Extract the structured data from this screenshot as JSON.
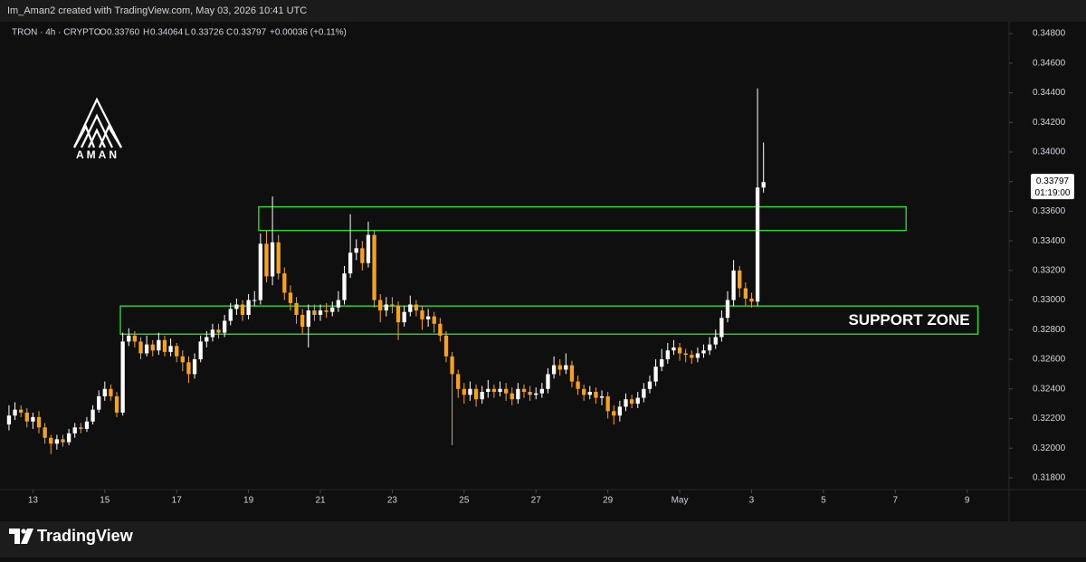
{
  "header": "Im_Aman2 created with TradingView.com, May 03, 2026 10:41 UTC",
  "legend": {
    "symbol": "TRON · 4h · CRYPTO",
    "o": "O",
    "open": "0.33760",
    "h": "H",
    "high": "0.34064",
    "l": "L",
    "low": "0.33726",
    "c": "C",
    "close": "0.33797",
    "change": "+0.00036 (+0.11%)"
  },
  "logo": "AMAN",
  "footer": "TradingView",
  "chart_data": {
    "type": "candlestick",
    "up_color": "#ffffff",
    "down_color": "#f7a21b",
    "zone_color": "#2ee62e",
    "ylim": [
      0.3172,
      0.3488
    ],
    "yticks": [
      {
        "value": 0.318,
        "label": "0.31800"
      },
      {
        "value": 0.32,
        "label": "0.32000"
      },
      {
        "value": 0.322,
        "label": "0.32200"
      },
      {
        "value": 0.324,
        "label": "0.32400"
      },
      {
        "value": 0.326,
        "label": "0.32600"
      },
      {
        "value": 0.328,
        "label": "0.32800"
      },
      {
        "value": 0.33,
        "label": "0.33000"
      },
      {
        "value": 0.332,
        "label": "0.33200"
      },
      {
        "value": 0.334,
        "label": "0.33400"
      },
      {
        "value": 0.336,
        "label": "0.33600"
      },
      {
        "value": 0.338,
        "label": "0.33800"
      },
      {
        "value": 0.34,
        "label": "0.34000"
      },
      {
        "value": 0.342,
        "label": "0.34200"
      },
      {
        "value": 0.344,
        "label": "0.34400"
      },
      {
        "value": 0.346,
        "label": "0.34600"
      },
      {
        "value": 0.348,
        "label": "0.34800"
      }
    ],
    "xlim": [
      -1.5,
      167
    ],
    "xticks": [
      {
        "value": 4,
        "label": "13"
      },
      {
        "value": 16,
        "label": "15"
      },
      {
        "value": 28,
        "label": "17"
      },
      {
        "value": 40,
        "label": "19"
      },
      {
        "value": 52,
        "label": "21"
      },
      {
        "value": 64,
        "label": "23"
      },
      {
        "value": 76,
        "label": "25"
      },
      {
        "value": 88,
        "label": "27"
      },
      {
        "value": 100,
        "label": "29"
      },
      {
        "value": 112,
        "label": "May"
      },
      {
        "value": 124,
        "label": "3"
      },
      {
        "value": 136,
        "label": "5"
      },
      {
        "value": 148,
        "label": "7"
      },
      {
        "value": 160,
        "label": "9"
      }
    ],
    "last_price": {
      "value": 0.33797,
      "label": "0.33797",
      "countdown": "01:19:00"
    },
    "zones": [
      {
        "x": [
          41.7,
          149.8
        ],
        "y": [
          0.3347,
          0.3363
        ]
      },
      {
        "x": [
          18.6,
          161.8
        ],
        "y": [
          0.3277,
          0.3296
        ],
        "label": "SUPPORT ZONE"
      }
    ],
    "ohlc": [
      [
        0.3216,
        0.3229,
        0.3212,
        0.3222
      ],
      [
        0.3222,
        0.3231,
        0.3219,
        0.3226
      ],
      [
        0.3226,
        0.3229,
        0.3221,
        0.3224
      ],
      [
        0.3224,
        0.3227,
        0.3214,
        0.3218
      ],
      [
        0.3218,
        0.3224,
        0.3213,
        0.3221
      ],
      [
        0.3221,
        0.3225,
        0.321,
        0.3214
      ],
      [
        0.3214,
        0.3217,
        0.3203,
        0.3207
      ],
      [
        0.3207,
        0.3209,
        0.3196,
        0.3203
      ],
      [
        0.3203,
        0.3209,
        0.3199,
        0.3206
      ],
      [
        0.3206,
        0.3209,
        0.3201,
        0.3204
      ],
      [
        0.3204,
        0.3213,
        0.3202,
        0.321
      ],
      [
        0.321,
        0.3217,
        0.3207,
        0.3214
      ],
      [
        0.3214,
        0.3217,
        0.321,
        0.3213
      ],
      [
        0.3213,
        0.3221,
        0.3211,
        0.3218
      ],
      [
        0.3218,
        0.3229,
        0.3216,
        0.3226
      ],
      [
        0.3226,
        0.3239,
        0.3224,
        0.3235
      ],
      [
        0.3235,
        0.3245,
        0.3232,
        0.324
      ],
      [
        0.324,
        0.3243,
        0.3232,
        0.3235
      ],
      [
        0.3235,
        0.3238,
        0.3221,
        0.3224
      ],
      [
        0.3224,
        0.3278,
        0.3222,
        0.3272
      ],
      [
        0.3272,
        0.3281,
        0.3269,
        0.3276
      ],
      [
        0.3276,
        0.3279,
        0.3268,
        0.3272
      ],
      [
        0.3272,
        0.3275,
        0.326,
        0.3264
      ],
      [
        0.3264,
        0.3276,
        0.3262,
        0.327
      ],
      [
        0.327,
        0.3273,
        0.3262,
        0.3266
      ],
      [
        0.3266,
        0.3278,
        0.3263,
        0.3273
      ],
      [
        0.3273,
        0.3276,
        0.3262,
        0.3265
      ],
      [
        0.3265,
        0.3274,
        0.3262,
        0.3269
      ],
      [
        0.3269,
        0.3271,
        0.3258,
        0.3262
      ],
      [
        0.3262,
        0.3266,
        0.3252,
        0.3258
      ],
      [
        0.3258,
        0.3262,
        0.3244,
        0.325
      ],
      [
        0.325,
        0.3264,
        0.3247,
        0.326
      ],
      [
        0.326,
        0.3276,
        0.3258,
        0.3272
      ],
      [
        0.3272,
        0.3279,
        0.3268,
        0.3275
      ],
      [
        0.3275,
        0.3284,
        0.3272,
        0.328
      ],
      [
        0.328,
        0.3284,
        0.3274,
        0.3278
      ],
      [
        0.3278,
        0.329,
        0.3275,
        0.3286
      ],
      [
        0.3286,
        0.3298,
        0.3283,
        0.3294
      ],
      [
        0.3294,
        0.3301,
        0.329,
        0.3297
      ],
      [
        0.3297,
        0.33,
        0.3286,
        0.329
      ],
      [
        0.329,
        0.3304,
        0.3287,
        0.33
      ],
      [
        0.33,
        0.3306,
        0.3296,
        0.33
      ],
      [
        0.33,
        0.3345,
        0.3297,
        0.3338
      ],
      [
        0.3338,
        0.3347,
        0.3312,
        0.3316
      ],
      [
        0.3316,
        0.337,
        0.331,
        0.3339
      ],
      [
        0.3339,
        0.3344,
        0.3314,
        0.3318
      ],
      [
        0.3318,
        0.3322,
        0.33,
        0.3305
      ],
      [
        0.3305,
        0.331,
        0.3293,
        0.3298
      ],
      [
        0.3298,
        0.3302,
        0.3284,
        0.329
      ],
      [
        0.329,
        0.3294,
        0.3277,
        0.3282
      ],
      [
        0.3282,
        0.3297,
        0.3268,
        0.3293
      ],
      [
        0.3293,
        0.3297,
        0.3286,
        0.329
      ],
      [
        0.329,
        0.3297,
        0.3286,
        0.3293
      ],
      [
        0.3293,
        0.3298,
        0.3288,
        0.3292
      ],
      [
        0.3292,
        0.3299,
        0.3289,
        0.3295
      ],
      [
        0.3295,
        0.3306,
        0.3292,
        0.33
      ],
      [
        0.33,
        0.3323,
        0.3297,
        0.3318
      ],
      [
        0.3318,
        0.3358,
        0.3315,
        0.3332
      ],
      [
        0.3332,
        0.3341,
        0.3327,
        0.3335
      ],
      [
        0.3335,
        0.334,
        0.332,
        0.3325
      ],
      [
        0.3325,
        0.3353,
        0.3322,
        0.3344
      ],
      [
        0.3344,
        0.3347,
        0.3295,
        0.33
      ],
      [
        0.33,
        0.3304,
        0.3285,
        0.3293
      ],
      [
        0.3293,
        0.3302,
        0.3289,
        0.3297
      ],
      [
        0.3297,
        0.3302,
        0.3291,
        0.3296
      ],
      [
        0.3296,
        0.3299,
        0.3273,
        0.3285
      ],
      [
        0.3285,
        0.3296,
        0.3282,
        0.3292
      ],
      [
        0.3292,
        0.3303,
        0.3289,
        0.3297
      ],
      [
        0.3297,
        0.33,
        0.3289,
        0.3293
      ],
      [
        0.3293,
        0.3296,
        0.328,
        0.3287
      ],
      [
        0.3287,
        0.3294,
        0.3282,
        0.3289
      ],
      [
        0.3289,
        0.3292,
        0.3278,
        0.3284
      ],
      [
        0.3284,
        0.3288,
        0.3272,
        0.3276
      ],
      [
        0.3276,
        0.3279,
        0.3258,
        0.3262
      ],
      [
        0.3262,
        0.3265,
        0.3202,
        0.325
      ],
      [
        0.325,
        0.3253,
        0.3234,
        0.324
      ],
      [
        0.324,
        0.3244,
        0.323,
        0.3236
      ],
      [
        0.3236,
        0.3245,
        0.3232,
        0.324
      ],
      [
        0.324,
        0.3243,
        0.3228,
        0.3233
      ],
      [
        0.3233,
        0.3242,
        0.323,
        0.3238
      ],
      [
        0.3238,
        0.3246,
        0.3234,
        0.324
      ],
      [
        0.324,
        0.3243,
        0.3234,
        0.3238
      ],
      [
        0.3238,
        0.3245,
        0.3235,
        0.324
      ],
      [
        0.324,
        0.3244,
        0.3232,
        0.3237
      ],
      [
        0.3237,
        0.3241,
        0.3229,
        0.3233
      ],
      [
        0.3233,
        0.3244,
        0.323,
        0.324
      ],
      [
        0.324,
        0.3243,
        0.3234,
        0.3238
      ],
      [
        0.3238,
        0.3242,
        0.3232,
        0.3236
      ],
      [
        0.3236,
        0.3241,
        0.3233,
        0.3237
      ],
      [
        0.3237,
        0.3244,
        0.3234,
        0.324
      ],
      [
        0.324,
        0.3254,
        0.3237,
        0.325
      ],
      [
        0.325,
        0.3262,
        0.3247,
        0.3256
      ],
      [
        0.3256,
        0.326,
        0.3249,
        0.3253
      ],
      [
        0.3253,
        0.3264,
        0.325,
        0.3256
      ],
      [
        0.3256,
        0.3259,
        0.3241,
        0.3245
      ],
      [
        0.3245,
        0.3249,
        0.3236,
        0.324
      ],
      [
        0.324,
        0.3243,
        0.3232,
        0.3236
      ],
      [
        0.3236,
        0.3242,
        0.3233,
        0.3238
      ],
      [
        0.3238,
        0.3241,
        0.323,
        0.3234
      ],
      [
        0.3234,
        0.3239,
        0.3229,
        0.3235
      ],
      [
        0.3235,
        0.3238,
        0.322,
        0.3225
      ],
      [
        0.3225,
        0.3229,
        0.3216,
        0.3222
      ],
      [
        0.3222,
        0.3232,
        0.3218,
        0.3228
      ],
      [
        0.3228,
        0.3237,
        0.3225,
        0.3233
      ],
      [
        0.3233,
        0.3236,
        0.3227,
        0.323
      ],
      [
        0.323,
        0.3238,
        0.3227,
        0.3234
      ],
      [
        0.3234,
        0.3244,
        0.3231,
        0.324
      ],
      [
        0.324,
        0.3249,
        0.3237,
        0.3245
      ],
      [
        0.3245,
        0.326,
        0.3242,
        0.3255
      ],
      [
        0.3255,
        0.3267,
        0.3252,
        0.326
      ],
      [
        0.326,
        0.3271,
        0.3257,
        0.3266
      ],
      [
        0.3266,
        0.3273,
        0.3263,
        0.3268
      ],
      [
        0.3268,
        0.3271,
        0.3259,
        0.3264
      ],
      [
        0.3264,
        0.3267,
        0.3258,
        0.3263
      ],
      [
        0.3263,
        0.3266,
        0.3257,
        0.3261
      ],
      [
        0.3261,
        0.3268,
        0.3258,
        0.3264
      ],
      [
        0.3264,
        0.327,
        0.3261,
        0.3266
      ],
      [
        0.3266,
        0.3275,
        0.3263,
        0.327
      ],
      [
        0.327,
        0.328,
        0.3267,
        0.3275
      ],
      [
        0.3275,
        0.3293,
        0.3272,
        0.3288
      ],
      [
        0.3288,
        0.3306,
        0.3285,
        0.33
      ],
      [
        0.33,
        0.3327,
        0.3296,
        0.332
      ],
      [
        0.332,
        0.3323,
        0.3302,
        0.3308
      ],
      [
        0.3308,
        0.3312,
        0.3296,
        0.3301
      ],
      [
        0.3301,
        0.3305,
        0.3295,
        0.3299
      ],
      [
        0.3299,
        0.3443,
        0.3296,
        0.3376
      ],
      [
        0.3376,
        0.34064,
        0.33726,
        0.33797
      ]
    ]
  }
}
